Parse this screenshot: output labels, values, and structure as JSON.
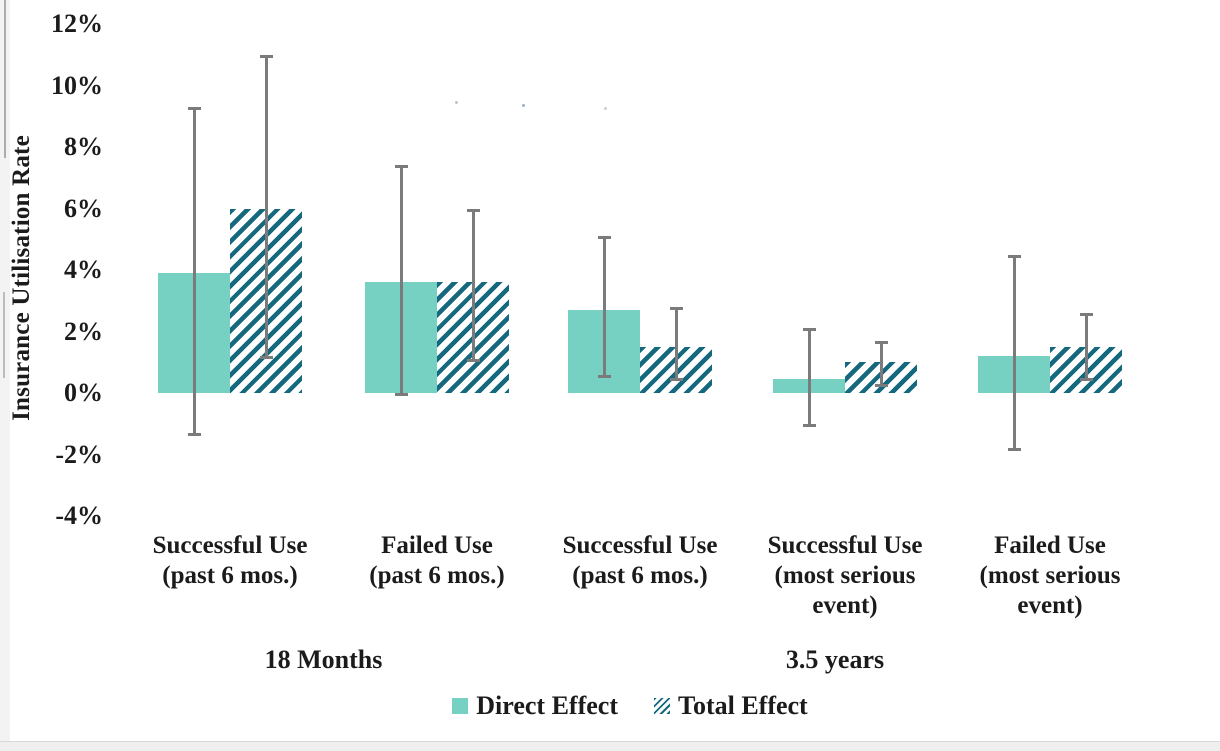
{
  "chart_data": {
    "type": "bar",
    "title": "",
    "xlabel": "",
    "ylabel": "Insurance Utilisation Rate",
    "grid": false,
    "legend_position": "bottom",
    "y_axis": {
      "min": -4,
      "max": 12,
      "tick_step": 2,
      "unit": "%",
      "tick_labels": [
        "12%",
        "10%",
        "8%",
        "6%",
        "4%",
        "2%",
        "0%",
        "-2%",
        "-4%"
      ]
    },
    "categories": [
      {
        "lines": [
          "Successful Use",
          "(past 6 mos.)"
        ]
      },
      {
        "lines": [
          "Failed Use",
          "(past 6 mos.)"
        ]
      },
      {
        "lines": [
          "Successful Use",
          "(past 6 mos.)"
        ]
      },
      {
        "lines": [
          "Successful Use",
          "(most serious",
          "event)"
        ]
      },
      {
        "lines": [
          "Failed Use",
          "(most serious",
          "event)"
        ]
      }
    ],
    "group_labels": [
      {
        "label": "18 Months",
        "spans_categories": [
          0,
          1
        ]
      },
      {
        "label": "3.5 years",
        "spans_categories": [
          2,
          3,
          4
        ]
      }
    ],
    "series": [
      {
        "name": "Direct Effect",
        "fill": "solid",
        "color": "#76d1c3",
        "values": [
          3.9,
          3.6,
          2.7,
          0.45,
          1.2
        ],
        "error_low": [
          -1.4,
          -0.1,
          0.5,
          -1.1,
          -1.9
        ],
        "error_high": [
          9.3,
          7.4,
          5.1,
          2.1,
          4.5
        ]
      },
      {
        "name": "Total Effect",
        "fill": "diagonal-hatch",
        "hatch_color": "#15697e",
        "values": [
          6.0,
          3.6,
          1.5,
          1.0,
          1.5
        ],
        "error_low": [
          1.1,
          1.0,
          0.4,
          0.2,
          0.4
        ],
        "error_high": [
          11.0,
          6.0,
          2.8,
          1.7,
          2.6
        ]
      }
    ],
    "error_bar_color": "#7b7b7b"
  }
}
